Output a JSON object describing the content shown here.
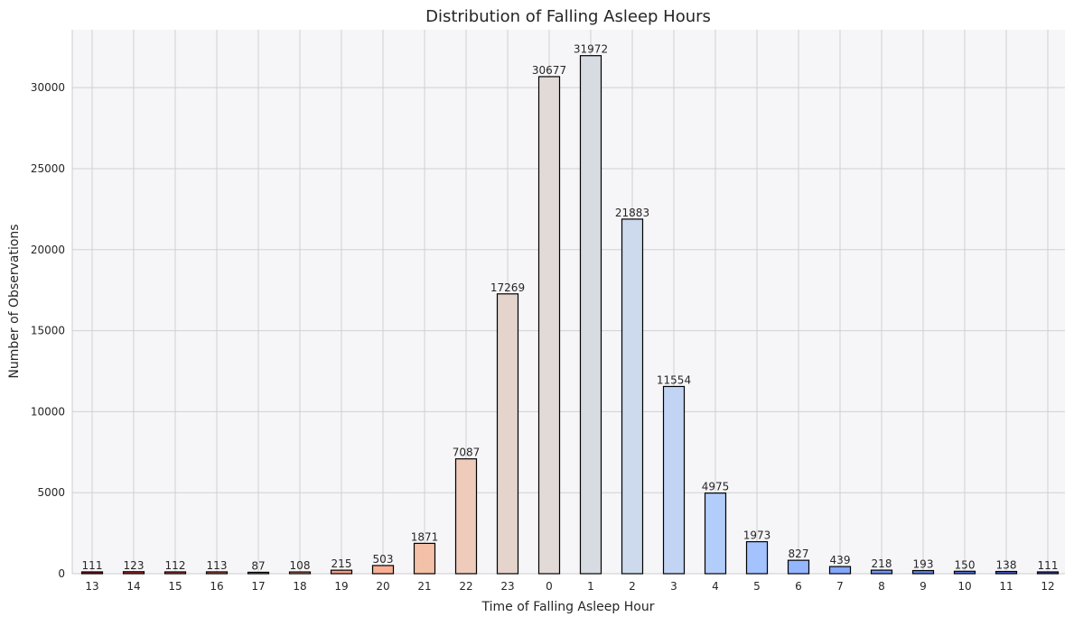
{
  "chart_data": {
    "type": "bar",
    "title": "Distribution of Falling Asleep Hours",
    "xlabel": "Time of Falling Asleep Hour",
    "ylabel": "Number of Observations",
    "categories": [
      "13",
      "14",
      "15",
      "16",
      "17",
      "18",
      "19",
      "20",
      "21",
      "22",
      "23",
      "0",
      "1",
      "2",
      "3",
      "4",
      "5",
      "6",
      "7",
      "8",
      "9",
      "10",
      "11",
      "12"
    ],
    "values": [
      111,
      123,
      112,
      113,
      87,
      108,
      215,
      503,
      1871,
      7087,
      17269,
      30677,
      31972,
      21883,
      11554,
      4975,
      1973,
      827,
      439,
      218,
      193,
      150,
      138,
      111
    ],
    "bar_colors": [
      "#b40426",
      "#c32e31",
      "#d24b40",
      "#de614d",
      "#e8765c",
      "#f08b6e",
      "#f59f80",
      "#f7b093",
      "#f3c1a8",
      "#eecbbb",
      "#e4d4cc",
      "#e2dad6",
      "#d7dce2",
      "#cdd9ec",
      "#c1d4f4",
      "#b3cdfa",
      "#a3c2fe",
      "#94b6ff",
      "#84a7fc",
      "#7396f5",
      "#6485ec",
      "#5572df",
      "#4961d2",
      "#3b4cc0"
    ],
    "bar_edge_color": "#000000",
    "yticks": [
      0,
      5000,
      10000,
      15000,
      20000,
      25000,
      30000
    ],
    "ylim": [
      0,
      33570
    ],
    "grid": true,
    "legend": "none",
    "background_color": "#f6f6f9"
  }
}
